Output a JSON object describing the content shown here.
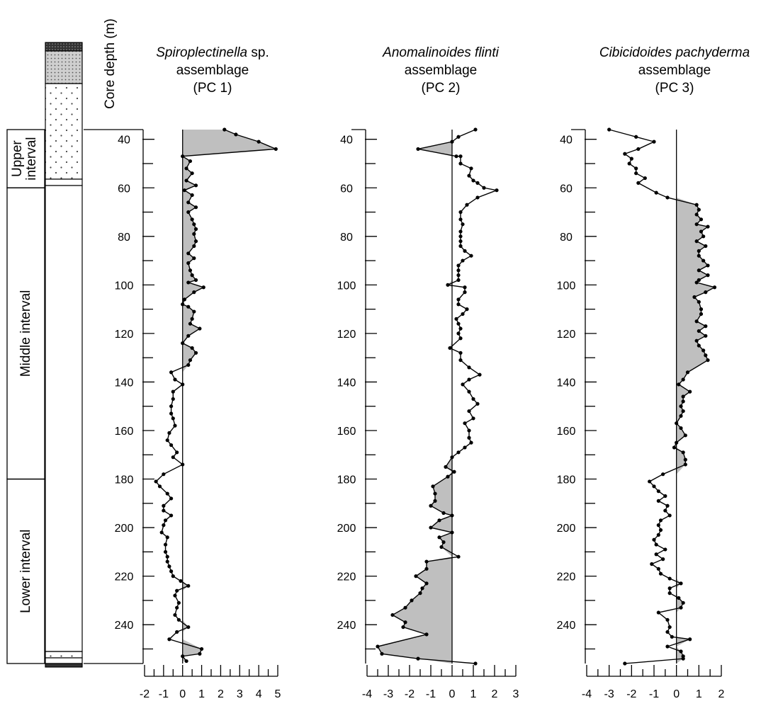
{
  "chart_data": {
    "type": "line",
    "depth_axis": {
      "label": "Core depth (m)",
      "ticks": [
        40,
        60,
        80,
        100,
        120,
        140,
        160,
        180,
        200,
        220,
        240
      ],
      "range": [
        36,
        256
      ]
    },
    "intervals": [
      {
        "label_lines": [
          "Upper",
          "interval"
        ],
        "from": 36,
        "to": 60
      },
      {
        "label_lines": [
          "Middle interval"
        ],
        "from": 60,
        "to": 180
      },
      {
        "label_lines": [
          "Lower interval"
        ],
        "from": 180,
        "to": 256
      }
    ],
    "lithology_fills": [
      "#333333",
      "#c8c8c8",
      "#ffffff",
      "#ffffff"
    ],
    "panels": [
      {
        "title_italic": "Spiroplectinella",
        "title_rest": " sp.",
        "title_line2": "assemblage",
        "title_line3": "(PC 1)",
        "xlim": [
          -2,
          5
        ],
        "xticks": [
          -2,
          -1,
          0,
          1,
          2,
          3,
          4,
          5
        ],
        "shade": "positive",
        "points": [
          [
            2.2,
            36
          ],
          [
            2.8,
            38
          ],
          [
            4.0,
            41
          ],
          [
            4.9,
            44
          ],
          [
            0.0,
            47
          ],
          [
            0.4,
            49
          ],
          [
            0.2,
            52
          ],
          [
            0.5,
            54
          ],
          [
            0.2,
            57
          ],
          [
            0.7,
            59
          ],
          [
            0.1,
            61
          ],
          [
            0.5,
            63
          ],
          [
            0.3,
            66
          ],
          [
            0.7,
            68
          ],
          [
            0.3,
            70
          ],
          [
            0.5,
            73
          ],
          [
            0.6,
            75
          ],
          [
            0.7,
            77
          ],
          [
            0.6,
            79
          ],
          [
            0.7,
            82
          ],
          [
            0.6,
            84
          ],
          [
            0.3,
            87
          ],
          [
            0.6,
            89
          ],
          [
            0.3,
            91
          ],
          [
            0.4,
            94
          ],
          [
            0.5,
            96
          ],
          [
            0.7,
            98
          ],
          [
            0.3,
            99
          ],
          [
            1.1,
            101
          ],
          [
            0.6,
            103
          ],
          [
            0.1,
            106
          ],
          [
            0.0,
            108
          ],
          [
            0.3,
            109
          ],
          [
            0.6,
            111
          ],
          [
            0.5,
            114
          ],
          [
            0.4,
            116
          ],
          [
            0.9,
            118
          ],
          [
            0.3,
            121
          ],
          [
            0.0,
            124
          ],
          [
            0.5,
            126
          ],
          [
            0.7,
            128
          ],
          [
            0.4,
            131
          ],
          [
            0.3,
            133
          ],
          [
            -0.6,
            136
          ],
          [
            -0.4,
            139
          ],
          [
            0.0,
            141
          ],
          [
            -0.5,
            144
          ],
          [
            -0.5,
            147
          ],
          [
            -0.6,
            150
          ],
          [
            -0.6,
            153
          ],
          [
            -0.5,
            155
          ],
          [
            -0.4,
            158
          ],
          [
            -0.7,
            161
          ],
          [
            -0.8,
            164
          ],
          [
            -0.6,
            166
          ],
          [
            -0.3,
            169
          ],
          [
            -0.5,
            171
          ],
          [
            0.0,
            174
          ],
          [
            -1.0,
            178
          ],
          [
            -1.4,
            181
          ],
          [
            -1.2,
            183
          ],
          [
            -0.8,
            186
          ],
          [
            -0.6,
            188
          ],
          [
            -1.0,
            191
          ],
          [
            -1.0,
            193
          ],
          [
            -0.6,
            195
          ],
          [
            -0.9,
            197
          ],
          [
            -1.0,
            199
          ],
          [
            -1.1,
            202
          ],
          [
            -0.8,
            204
          ],
          [
            -0.9,
            207
          ],
          [
            -0.9,
            210
          ],
          [
            -0.8,
            212
          ],
          [
            -0.8,
            214
          ],
          [
            -0.7,
            216
          ],
          [
            -0.6,
            218
          ],
          [
            -0.5,
            220
          ],
          [
            -0.1,
            222
          ],
          [
            0.3,
            224
          ],
          [
            -0.3,
            226
          ],
          [
            -0.4,
            228
          ],
          [
            -0.2,
            231
          ],
          [
            -0.3,
            233
          ],
          [
            -0.4,
            236
          ],
          [
            -0.2,
            238
          ],
          [
            0.3,
            241
          ],
          [
            -0.3,
            243
          ],
          [
            -0.7,
            246
          ],
          [
            1.0,
            250
          ],
          [
            0.9,
            252
          ],
          [
            0.0,
            253
          ],
          [
            0.2,
            255
          ]
        ]
      },
      {
        "title_italic": "Anomalinoides flinti",
        "title_rest": "",
        "title_line2": "assemblage",
        "title_line3": "(PC 2)",
        "xlim": [
          -4,
          3
        ],
        "xticks": [
          -4,
          -3,
          -2,
          -1,
          0,
          1,
          2,
          3
        ],
        "shade": "negative",
        "points": [
          [
            1.1,
            36
          ],
          [
            0.3,
            39
          ],
          [
            0.0,
            41
          ],
          [
            -1.6,
            44
          ],
          [
            0.2,
            47
          ],
          [
            0.4,
            47
          ],
          [
            0.4,
            50
          ],
          [
            0.9,
            52
          ],
          [
            0.8,
            55
          ],
          [
            1.0,
            57
          ],
          [
            1.2,
            58
          ],
          [
            1.5,
            60
          ],
          [
            2.1,
            61
          ],
          [
            1.2,
            64
          ],
          [
            0.7,
            67
          ],
          [
            0.4,
            70
          ],
          [
            0.4,
            73
          ],
          [
            0.5,
            75
          ],
          [
            0.4,
            78
          ],
          [
            0.4,
            80
          ],
          [
            0.4,
            82
          ],
          [
            0.4,
            84
          ],
          [
            0.6,
            86
          ],
          [
            0.9,
            88
          ],
          [
            0.5,
            90
          ],
          [
            0.3,
            92
          ],
          [
            0.3,
            94
          ],
          [
            0.3,
            96
          ],
          [
            0.3,
            98
          ],
          [
            -0.2,
            100
          ],
          [
            0.6,
            101
          ],
          [
            0.6,
            103
          ],
          [
            0.3,
            106
          ],
          [
            0.3,
            108
          ],
          [
            0.7,
            110
          ],
          [
            0.5,
            112
          ],
          [
            0.2,
            114
          ],
          [
            0.3,
            116
          ],
          [
            0.4,
            118
          ],
          [
            0.3,
            120
          ],
          [
            0.4,
            122
          ],
          [
            -0.1,
            126
          ],
          [
            0.4,
            128
          ],
          [
            0.4,
            131
          ],
          [
            0.8,
            134
          ],
          [
            1.3,
            137
          ],
          [
            0.8,
            139
          ],
          [
            0.5,
            141
          ],
          [
            0.8,
            144
          ],
          [
            1.0,
            147
          ],
          [
            1.2,
            149
          ],
          [
            0.8,
            152
          ],
          [
            1.0,
            155
          ],
          [
            0.6,
            157
          ],
          [
            0.8,
            160
          ],
          [
            0.8,
            163
          ],
          [
            0.9,
            165
          ],
          [
            0.6,
            167
          ],
          [
            0.3,
            169
          ],
          [
            0.0,
            171
          ],
          [
            -0.3,
            175
          ],
          [
            0.1,
            177
          ],
          [
            -0.2,
            179
          ],
          [
            -0.9,
            183
          ],
          [
            -0.8,
            186
          ],
          [
            -0.8,
            189
          ],
          [
            -1.0,
            191
          ],
          [
            -0.4,
            194
          ],
          [
            0.0,
            195
          ],
          [
            -0.6,
            197
          ],
          [
            -1.0,
            200
          ],
          [
            0.0,
            202
          ],
          [
            -0.6,
            204
          ],
          [
            -0.4,
            206
          ],
          [
            -0.5,
            208
          ],
          [
            0.3,
            212
          ],
          [
            -1.2,
            214
          ],
          [
            -1.2,
            217
          ],
          [
            -1.7,
            220
          ],
          [
            -1.2,
            223
          ],
          [
            -1.4,
            225
          ],
          [
            -1.5,
            227
          ],
          [
            -1.9,
            230
          ],
          [
            -2.2,
            233
          ],
          [
            -2.8,
            236
          ],
          [
            -2.2,
            239
          ],
          [
            -2.3,
            241
          ],
          [
            -1.2,
            244
          ],
          [
            -3.5,
            249
          ],
          [
            -3.3,
            252
          ],
          [
            -1.6,
            254
          ],
          [
            1.1,
            256
          ]
        ]
      },
      {
        "title_italic": "Cibicidoides pachyderma",
        "title_rest": "",
        "title_line2": "assemblage",
        "title_line3": "(PC 3)",
        "xlim": [
          -4,
          2
        ],
        "xticks": [
          -4,
          -3,
          -2,
          -1,
          0,
          1,
          2
        ],
        "shade": "positive",
        "points": [
          [
            -3.0,
            36
          ],
          [
            -1.8,
            39
          ],
          [
            -1.0,
            41
          ],
          [
            -1.7,
            44
          ],
          [
            -2.3,
            46
          ],
          [
            -2.0,
            48
          ],
          [
            -2.1,
            50
          ],
          [
            -1.8,
            52
          ],
          [
            -1.8,
            54
          ],
          [
            -1.4,
            56
          ],
          [
            -1.7,
            58
          ],
          [
            -0.9,
            62
          ],
          [
            -0.4,
            64
          ],
          [
            0.9,
            67
          ],
          [
            1.0,
            69
          ],
          [
            0.9,
            71
          ],
          [
            1.1,
            73
          ],
          [
            0.9,
            75
          ],
          [
            1.4,
            76
          ],
          [
            1.1,
            78
          ],
          [
            1.2,
            80
          ],
          [
            0.9,
            82
          ],
          [
            1.3,
            84
          ],
          [
            1.0,
            86
          ],
          [
            1.0,
            88
          ],
          [
            1.2,
            90
          ],
          [
            1.4,
            92
          ],
          [
            1.0,
            94
          ],
          [
            1.4,
            96
          ],
          [
            1.0,
            98
          ],
          [
            0.9,
            99
          ],
          [
            1.7,
            101
          ],
          [
            1.3,
            103
          ],
          [
            0.8,
            105
          ],
          [
            1.0,
            107
          ],
          [
            1.1,
            110
          ],
          [
            1.1,
            112
          ],
          [
            0.9,
            115
          ],
          [
            1.3,
            117
          ],
          [
            1.0,
            119
          ],
          [
            1.3,
            121
          ],
          [
            0.9,
            123
          ],
          [
            1.0,
            125
          ],
          [
            1.2,
            127
          ],
          [
            1.3,
            129
          ],
          [
            1.4,
            131
          ],
          [
            0.5,
            136
          ],
          [
            0.3,
            139
          ],
          [
            0.1,
            141
          ],
          [
            0.6,
            144
          ],
          [
            0.3,
            146
          ],
          [
            0.3,
            148
          ],
          [
            0.2,
            150
          ],
          [
            0.3,
            152
          ],
          [
            0.2,
            154
          ],
          [
            0.0,
            157
          ],
          [
            0.2,
            159
          ],
          [
            0.4,
            162
          ],
          [
            0.0,
            165
          ],
          [
            -0.1,
            167
          ],
          [
            0.3,
            169
          ],
          [
            0.4,
            172
          ],
          [
            0.4,
            174
          ],
          [
            -0.6,
            178
          ],
          [
            -1.2,
            181
          ],
          [
            -1.0,
            183
          ],
          [
            -0.8,
            185
          ],
          [
            -0.5,
            187
          ],
          [
            -0.8,
            189
          ],
          [
            -0.4,
            191
          ],
          [
            -0.5,
            193
          ],
          [
            -0.3,
            195
          ],
          [
            -0.7,
            197
          ],
          [
            -0.8,
            199
          ],
          [
            -0.7,
            201
          ],
          [
            -0.8,
            203
          ],
          [
            -1.0,
            205
          ],
          [
            -0.9,
            207
          ],
          [
            -0.5,
            209
          ],
          [
            -0.9,
            211
          ],
          [
            -0.6,
            213
          ],
          [
            -1.1,
            215
          ],
          [
            -0.8,
            217
          ],
          [
            -0.7,
            219
          ],
          [
            -0.3,
            221
          ],
          [
            0.2,
            223
          ],
          [
            -0.3,
            225
          ],
          [
            -0.3,
            227
          ],
          [
            0.1,
            229
          ],
          [
            0.3,
            231
          ],
          [
            0.2,
            233
          ],
          [
            -0.8,
            235
          ],
          [
            -0.4,
            238
          ],
          [
            -0.3,
            241
          ],
          [
            -0.4,
            243
          ],
          [
            -0.2,
            245
          ],
          [
            0.6,
            246
          ],
          [
            -0.4,
            249
          ],
          [
            0.2,
            251
          ],
          [
            0.3,
            253
          ],
          [
            0.3,
            254
          ],
          [
            -2.3,
            256
          ]
        ]
      }
    ]
  }
}
